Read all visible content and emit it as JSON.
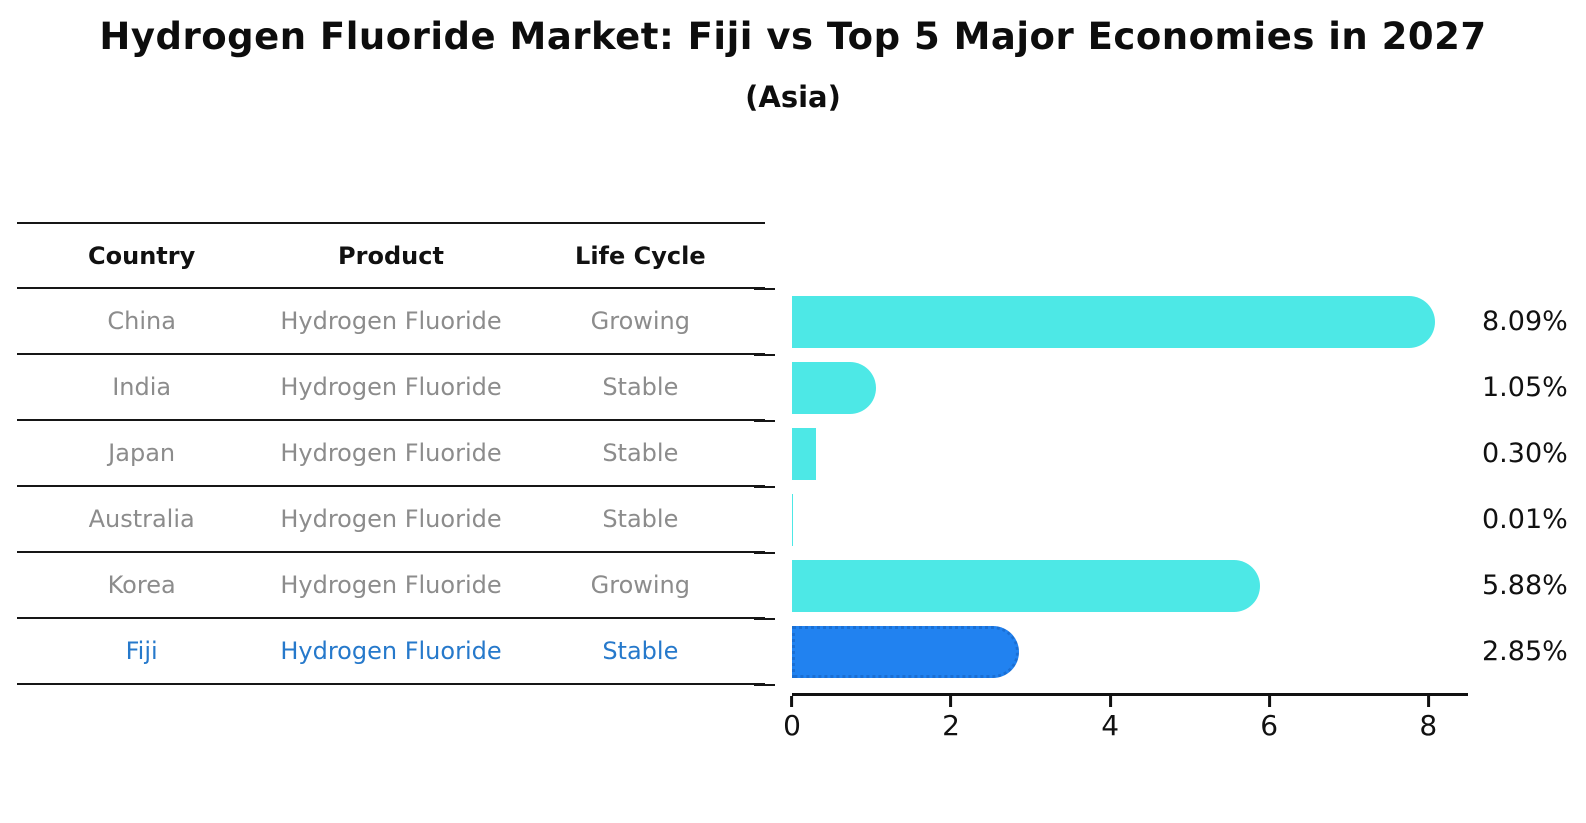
{
  "title": "Hydrogen Fluoride Market: Fiji vs Top 5 Major Economies in 2027",
  "subtitle": "(Asia)",
  "table": {
    "headers": [
      "Country",
      "Product",
      "Life Cycle"
    ],
    "rows": [
      {
        "country": "China",
        "product": "Hydrogen Fluoride",
        "life_cycle": "Growing"
      },
      {
        "country": "India",
        "product": "Hydrogen Fluoride",
        "life_cycle": "Stable"
      },
      {
        "country": "Japan",
        "product": "Hydrogen Fluoride",
        "life_cycle": "Stable"
      },
      {
        "country": "Australia",
        "product": "Hydrogen Fluoride",
        "life_cycle": "Stable"
      },
      {
        "country": "Korea",
        "product": "Hydrogen Fluoride",
        "life_cycle": "Growing"
      },
      {
        "country": "Fiji",
        "product": "Hydrogen Fluoride",
        "life_cycle": "Stable"
      }
    ]
  },
  "chart_data": {
    "type": "bar",
    "orientation": "horizontal",
    "title": "Hydrogen Fluoride Market: Fiji vs Top 5 Major Economies in 2027",
    "subtitle": "(Asia)",
    "categories": [
      "China",
      "India",
      "Japan",
      "Australia",
      "Korea",
      "Fiji"
    ],
    "values": [
      8.09,
      1.05,
      0.3,
      0.01,
      5.88,
      2.85
    ],
    "value_labels": [
      "8.09%",
      "1.05%",
      "0.30%",
      "0.01%",
      "5.88%",
      "2.85%"
    ],
    "unit": "%",
    "xticks": [
      0,
      2,
      4,
      6,
      8
    ],
    "xlim": [
      0,
      8.5
    ],
    "grid": false,
    "legend": false,
    "bar_color": "#4de8e6",
    "highlight_index": 5,
    "highlight_color": "#2182f0",
    "highlight_border_color": "#1a6fd4",
    "highlight_text_color": "#2679cb"
  }
}
